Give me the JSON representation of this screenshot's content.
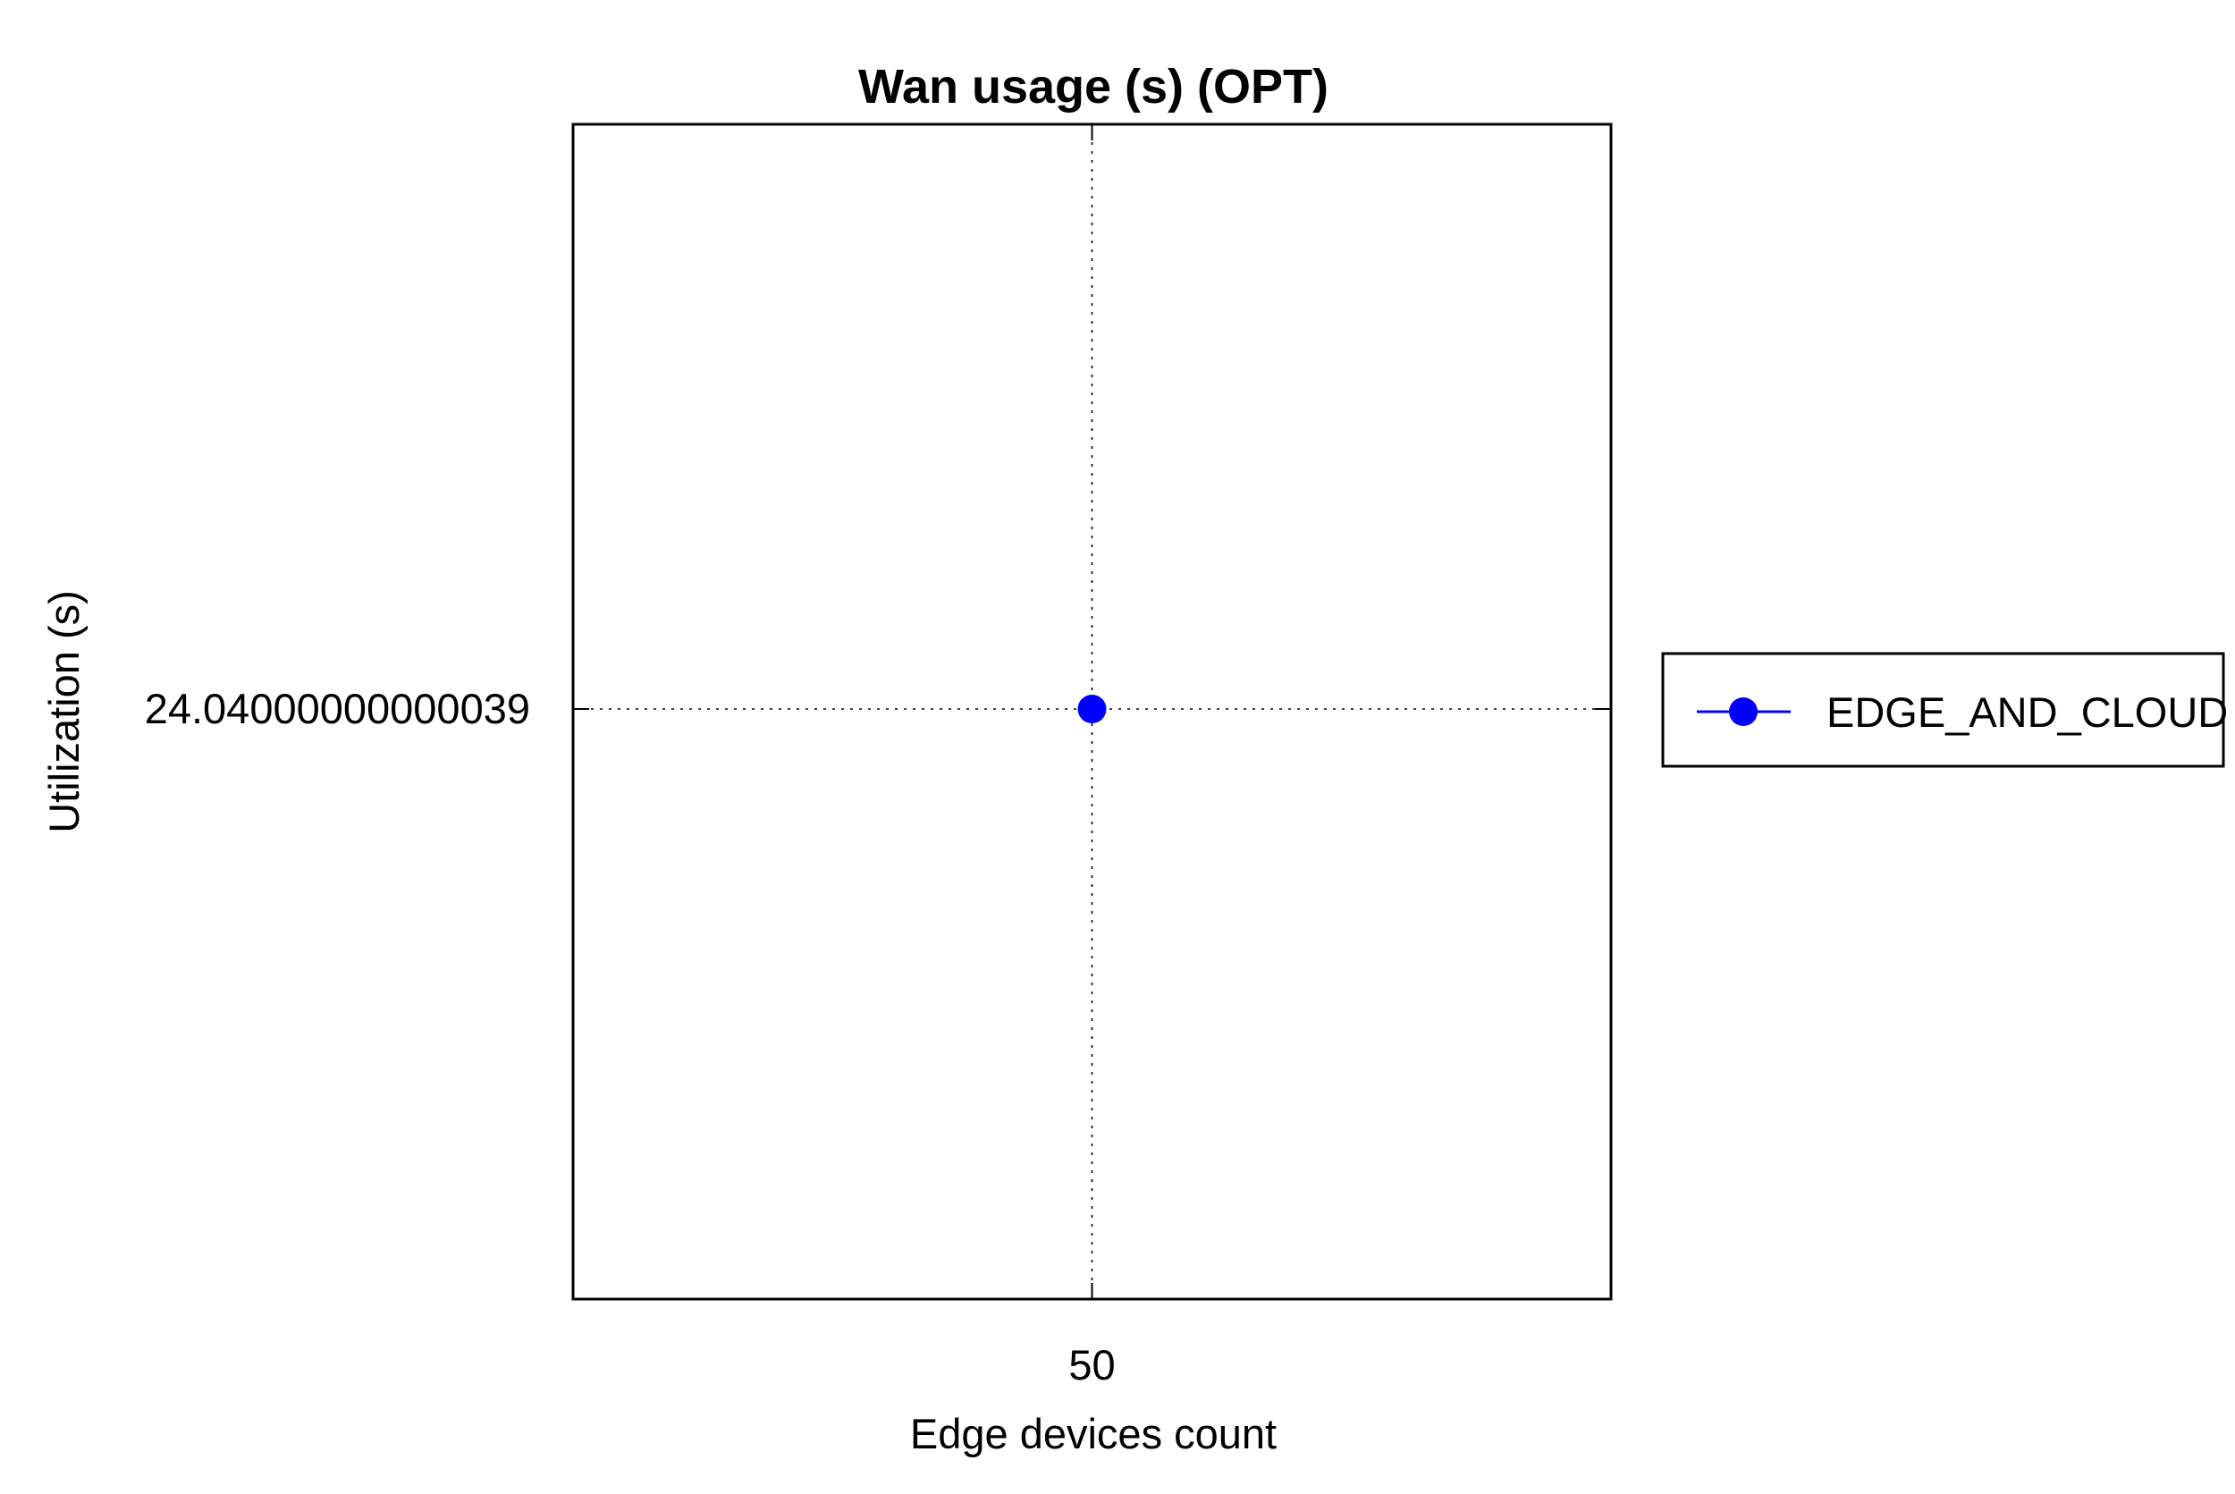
{
  "chart_data": {
    "type": "line",
    "title": "Wan usage (s) (OPT)",
    "xlabel": "Edge devices count",
    "ylabel": "Utilization (s)",
    "x_ticks": [
      "50"
    ],
    "y_ticks": [
      "24.04000000000039"
    ],
    "x": [
      50
    ],
    "series": [
      {
        "name": "EDGE_AND_CLOUD",
        "values": [
          24.04000000000039
        ],
        "color": "#0000ff",
        "marker": "circle"
      }
    ],
    "grid": true,
    "grid_style": "dotted",
    "legend_position": "right"
  }
}
